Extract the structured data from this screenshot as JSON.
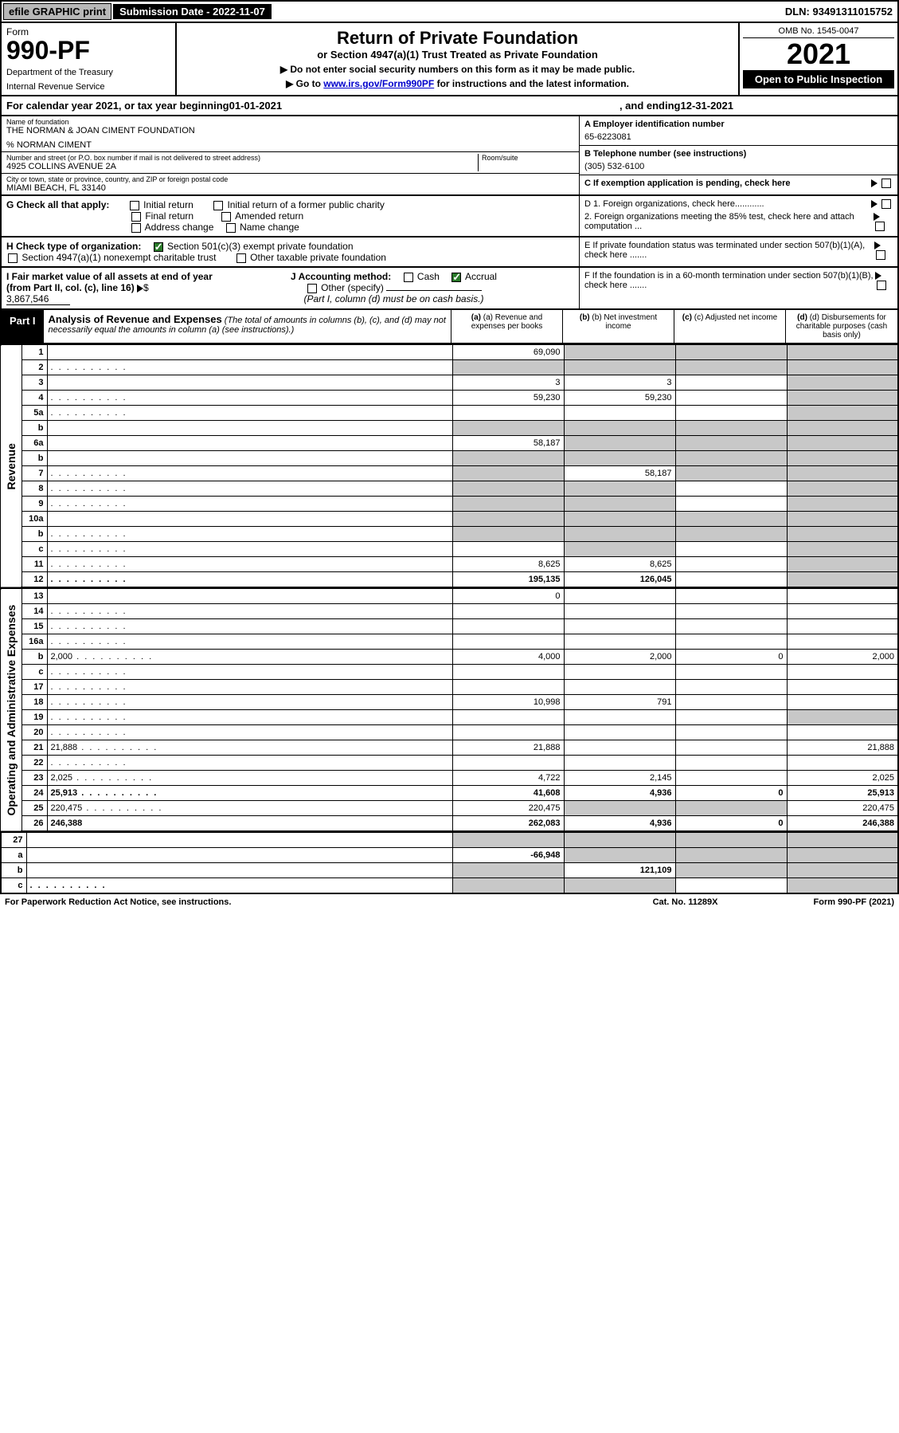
{
  "top": {
    "efile": "efile GRAPHIC print",
    "subdate_label": "Submission Date - 2022-11-07",
    "dln": "DLN: 93491311015752"
  },
  "header": {
    "form_label": "Form",
    "form_no": "990-PF",
    "dept": "Department of the Treasury",
    "irs": "Internal Revenue Service",
    "title": "Return of Private Foundation",
    "subtitle": "or Section 4947(a)(1) Trust Treated as Private Foundation",
    "instr1": "▶ Do not enter social security numbers on this form as it may be made public.",
    "instr2_pre": "▶ Go to ",
    "instr2_link": "www.irs.gov/Form990PF",
    "instr2_post": " for instructions and the latest information.",
    "omb": "OMB No. 1545-0047",
    "year": "2021",
    "open": "Open to Public Inspection"
  },
  "calyear": {
    "pre": "For calendar year 2021, or tax year beginning ",
    "begin": "01-01-2021",
    "mid": ", and ending ",
    "end": "12-31-2021"
  },
  "entity": {
    "name_lbl": "Name of foundation",
    "name": "THE NORMAN & JOAN CIMENT FOUNDATION",
    "care_of": "% NORMAN CIMENT",
    "addr_lbl": "Number and street (or P.O. box number if mail is not delivered to street address)",
    "addr": "4925 COLLINS AVENUE 2A",
    "room_lbl": "Room/suite",
    "city_lbl": "City or town, state or province, country, and ZIP or foreign postal code",
    "city": "MIAMI BEACH, FL  33140",
    "a_lbl": "A Employer identification number",
    "a_val": "65-6223081",
    "b_lbl": "B Telephone number (see instructions)",
    "b_val": "(305) 532-6100",
    "c_lbl": "C If exemption application is pending, check here"
  },
  "g": {
    "label": "G Check all that apply:",
    "opts": [
      "Initial return",
      "Final return",
      "Address change",
      "Initial return of a former public charity",
      "Amended return",
      "Name change"
    ]
  },
  "d": {
    "d1": "D 1. Foreign organizations, check here............",
    "d2": "2. Foreign organizations meeting the 85% test, check here and attach computation ...",
    "e": "E  If private foundation status was terminated under section 507(b)(1)(A), check here .......",
    "f": "F  If the foundation is in a 60-month termination under section 507(b)(1)(B), check here ......."
  },
  "h": {
    "label": "H Check type of organization:",
    "opt1": "Section 501(c)(3) exempt private foundation",
    "opt2": "Section 4947(a)(1) nonexempt charitable trust",
    "opt3": "Other taxable private foundation"
  },
  "i": {
    "label": "I Fair market value of all assets at end of year (from Part II, col. (c), line 16)",
    "val": "3,867,546"
  },
  "j": {
    "label": "J Accounting method:",
    "cash": "Cash",
    "accrual": "Accrual",
    "other": "Other (specify)",
    "note": "(Part I, column (d) must be on cash basis.)"
  },
  "part1": {
    "badge": "Part I",
    "title": "Analysis of Revenue and Expenses",
    "note": "(The total of amounts in columns (b), (c), and (d) may not necessarily equal the amounts in column (a) (see instructions).)",
    "col_a": "(a)  Revenue and expenses per books",
    "col_b": "(b)  Net investment income",
    "col_c": "(c)  Adjusted net income",
    "col_d": "(d)  Disbursements for charitable purposes (cash basis only)"
  },
  "side": {
    "revenue": "Revenue",
    "expenses": "Operating and Administrative Expenses"
  },
  "rows": [
    {
      "n": "1",
      "d": "",
      "a": "69,090",
      "b": "",
      "c": "",
      "bg": true,
      "cg": true,
      "dg": true
    },
    {
      "n": "2",
      "d": "",
      "a": "",
      "b": "",
      "c": "",
      "ag": true,
      "bg": true,
      "cg": true,
      "dg": true,
      "dots": true
    },
    {
      "n": "3",
      "d": "",
      "a": "3",
      "b": "3",
      "c": "",
      "dg": true
    },
    {
      "n": "4",
      "d": "",
      "a": "59,230",
      "b": "59,230",
      "c": "",
      "dg": true,
      "dots": true
    },
    {
      "n": "5a",
      "d": "",
      "a": "",
      "b": "",
      "c": "",
      "dg": true,
      "dots": true
    },
    {
      "n": "b",
      "d": "",
      "a": "",
      "b": "",
      "c": "",
      "ag": true,
      "bg": true,
      "cg": true,
      "dg": true
    },
    {
      "n": "6a",
      "d": "",
      "a": "58,187",
      "b": "",
      "c": "",
      "bg": true,
      "cg": true,
      "dg": true
    },
    {
      "n": "b",
      "d": "",
      "a": "",
      "b": "",
      "c": "",
      "ag": true,
      "bg": true,
      "cg": true,
      "dg": true
    },
    {
      "n": "7",
      "d": "",
      "a": "",
      "b": "58,187",
      "c": "",
      "ag": true,
      "cg": true,
      "dg": true,
      "dots": true
    },
    {
      "n": "8",
      "d": "",
      "a": "",
      "b": "",
      "c": "",
      "ag": true,
      "bg": true,
      "dg": true,
      "dots": true
    },
    {
      "n": "9",
      "d": "",
      "a": "",
      "b": "",
      "c": "",
      "ag": true,
      "bg": true,
      "dg": true,
      "dots": true
    },
    {
      "n": "10a",
      "d": "",
      "a": "",
      "b": "",
      "c": "",
      "ag": true,
      "bg": true,
      "cg": true,
      "dg": true
    },
    {
      "n": "b",
      "d": "",
      "a": "",
      "b": "",
      "c": "",
      "ag": true,
      "bg": true,
      "cg": true,
      "dg": true,
      "dots": true
    },
    {
      "n": "c",
      "d": "",
      "a": "",
      "b": "",
      "c": "",
      "bg": true,
      "dg": true,
      "dots": true
    },
    {
      "n": "11",
      "d": "",
      "a": "8,625",
      "b": "8,625",
      "c": "",
      "dg": true,
      "dots": true
    },
    {
      "n": "12",
      "d": "",
      "a": "195,135",
      "b": "126,045",
      "c": "",
      "dg": true,
      "bold": true,
      "dots": true
    }
  ],
  "exp_rows": [
    {
      "n": "13",
      "d": "",
      "a": "0",
      "b": "",
      "c": ""
    },
    {
      "n": "14",
      "d": "",
      "a": "",
      "b": "",
      "c": "",
      "dots": true
    },
    {
      "n": "15",
      "d": "",
      "a": "",
      "b": "",
      "c": "",
      "dots": true
    },
    {
      "n": "16a",
      "d": "",
      "a": "",
      "b": "",
      "c": "",
      "dots": true
    },
    {
      "n": "b",
      "d": "2,000",
      "a": "4,000",
      "b": "2,000",
      "c": "0",
      "dots": true
    },
    {
      "n": "c",
      "d": "",
      "a": "",
      "b": "",
      "c": "",
      "dots": true
    },
    {
      "n": "17",
      "d": "",
      "a": "",
      "b": "",
      "c": "",
      "dots": true
    },
    {
      "n": "18",
      "d": "",
      "a": "10,998",
      "b": "791",
      "c": "",
      "dots": true
    },
    {
      "n": "19",
      "d": "",
      "a": "",
      "b": "",
      "c": "",
      "dg": true,
      "dots": true
    },
    {
      "n": "20",
      "d": "",
      "a": "",
      "b": "",
      "c": "",
      "dots": true
    },
    {
      "n": "21",
      "d": "21,888",
      "a": "21,888",
      "b": "",
      "c": "",
      "dots": true
    },
    {
      "n": "22",
      "d": "",
      "a": "",
      "b": "",
      "c": "",
      "dots": true
    },
    {
      "n": "23",
      "d": "2,025",
      "a": "4,722",
      "b": "2,145",
      "c": "",
      "dots": true
    },
    {
      "n": "24",
      "d": "25,913",
      "a": "41,608",
      "b": "4,936",
      "c": "0",
      "bold": true,
      "dots": true
    },
    {
      "n": "25",
      "d": "220,475",
      "a": "220,475",
      "b": "",
      "c": "",
      "bg": true,
      "cg": true,
      "dots": true
    },
    {
      "n": "26",
      "d": "246,388",
      "a": "262,083",
      "b": "4,936",
      "c": "0",
      "bold": true
    }
  ],
  "sub_rows": [
    {
      "n": "27",
      "d": "",
      "a": "",
      "b": "",
      "c": "",
      "ag": true,
      "bg": true,
      "cg": true,
      "dg": true
    },
    {
      "n": "a",
      "d": "",
      "a": "-66,948",
      "b": "",
      "c": "",
      "bold": true,
      "bg": true,
      "cg": true,
      "dg": true
    },
    {
      "n": "b",
      "d": "",
      "a": "",
      "b": "121,109",
      "c": "",
      "bold": true,
      "ag": true,
      "cg": true,
      "dg": true
    },
    {
      "n": "c",
      "d": "",
      "a": "",
      "b": "",
      "c": "",
      "bold": true,
      "ag": true,
      "bg": true,
      "dg": true,
      "dots": true
    }
  ],
  "footer": {
    "left": "For Paperwork Reduction Act Notice, see instructions.",
    "mid": "Cat. No. 11289X",
    "right": "Form 990-PF (2021)"
  }
}
